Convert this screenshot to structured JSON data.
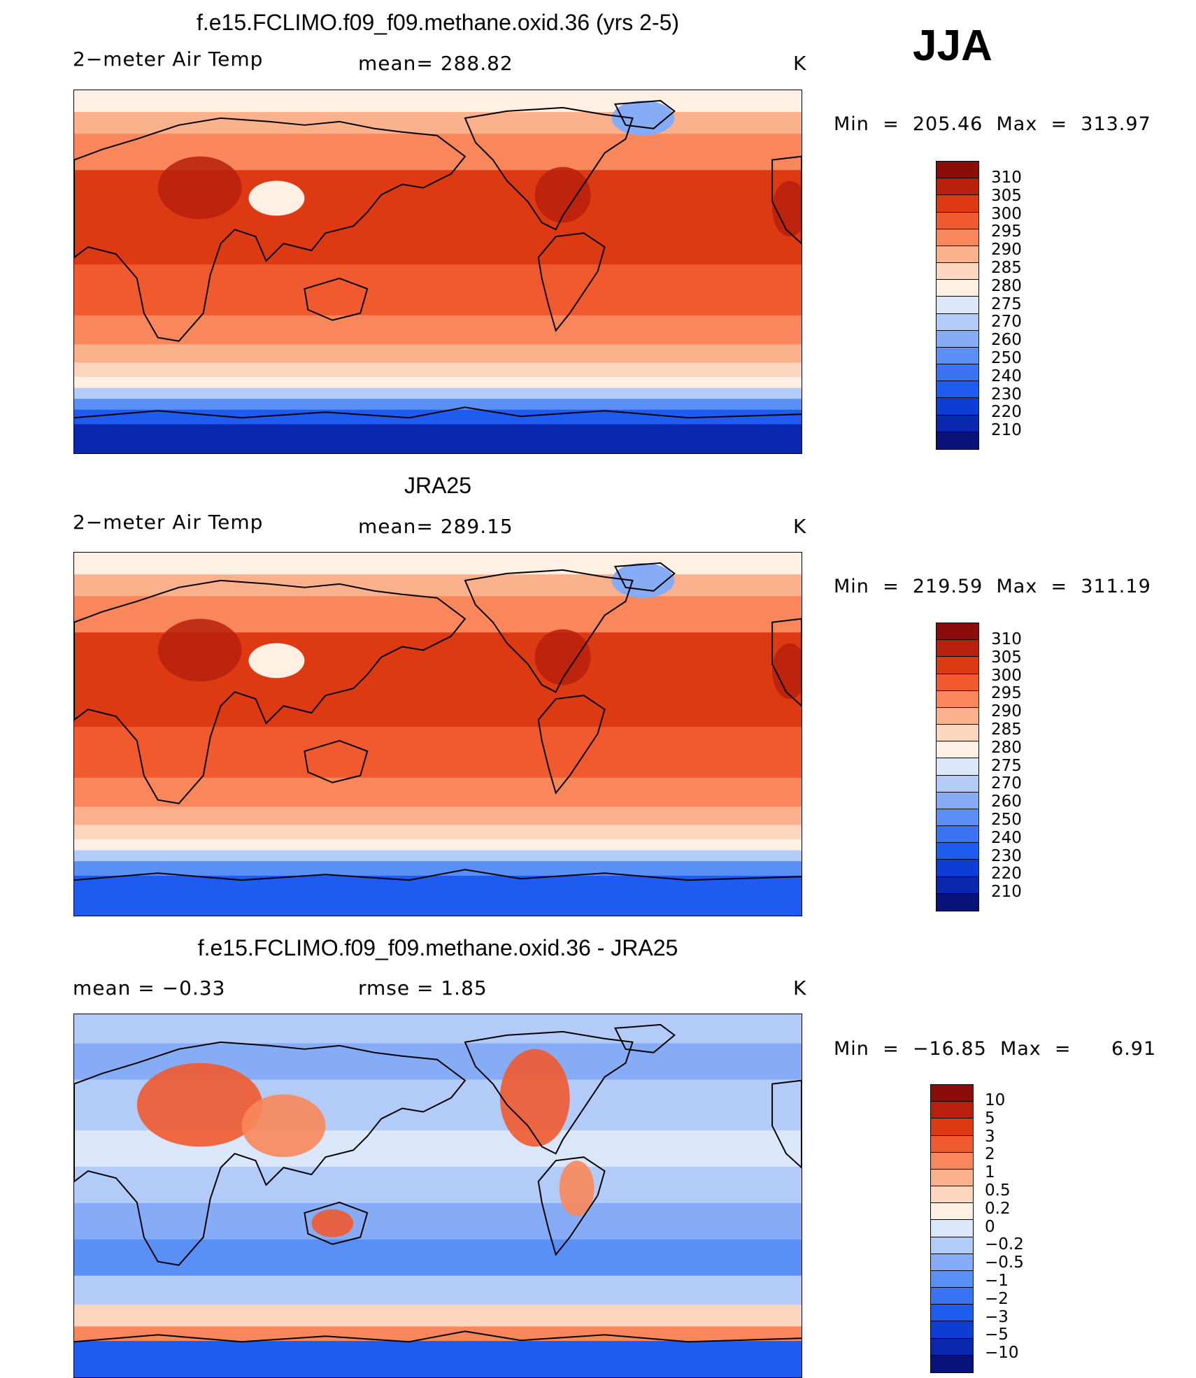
{
  "season": "JJA",
  "palettes": {
    "abs": [
      "#07137a",
      "#0a27b0",
      "#0d3dd6",
      "#1e5bf0",
      "#3a74f2",
      "#5a8ff5",
      "#86acf7",
      "#b3cbf9",
      "#dae7fb",
      "#fff0e3",
      "#fdd6bf",
      "#fbb18c",
      "#f9875b",
      "#f15a2e",
      "#dd3a14",
      "#b7200c",
      "#8b0d0a"
    ],
    "diff": [
      "#07137a",
      "#0a27b0",
      "#0d3dd6",
      "#1e5bf0",
      "#3a74f2",
      "#5a8ff5",
      "#86acf7",
      "#b3cbf9",
      "#dae7fb",
      "#fff0e3",
      "#fdd6bf",
      "#fbb18c",
      "#f9875b",
      "#f15a2e",
      "#dd3a14",
      "#b7200c",
      "#8b0d0a"
    ]
  },
  "panels": [
    {
      "title": "f.e15.FCLIMO.f09_f09.methane.oxid.36 (yrs 2-5)",
      "left_label": "2−meter Air Temp",
      "center_label": "mean=  288.82",
      "units": "K",
      "minmax": "Min  =  205.46  Max  =  313.97",
      "colorbar_labels": [
        "310",
        "305",
        "300",
        "295",
        "290",
        "285",
        "280",
        "275",
        "270",
        "260",
        "250",
        "240",
        "230",
        "220",
        "210"
      ],
      "field": "model"
    },
    {
      "title": "JRA25",
      "left_label": "2−meter Air Temp",
      "center_label": "mean=  289.15",
      "units": "K",
      "minmax": "Min  =  219.59  Max  =  311.19",
      "colorbar_labels": [
        "310",
        "305",
        "300",
        "295",
        "290",
        "285",
        "280",
        "275",
        "270",
        "260",
        "250",
        "240",
        "230",
        "220",
        "210"
      ],
      "field": "obs"
    },
    {
      "title": "f.e15.FCLIMO.f09_f09.methane.oxid.36 - JRA25",
      "left_label": "mean  =     −0.33",
      "center_label": "rmse  =     1.85",
      "units": "K",
      "minmax": "Min  =  −16.85  Max  =      6.91",
      "colorbar_labels": [
        "10",
        "5",
        "3",
        "2",
        "1",
        "0.5",
        "0.2",
        "0",
        "−0.2",
        "−0.5",
        "−1",
        "−2",
        "−3",
        "−5",
        "−10"
      ],
      "field": "diff"
    }
  ]
}
